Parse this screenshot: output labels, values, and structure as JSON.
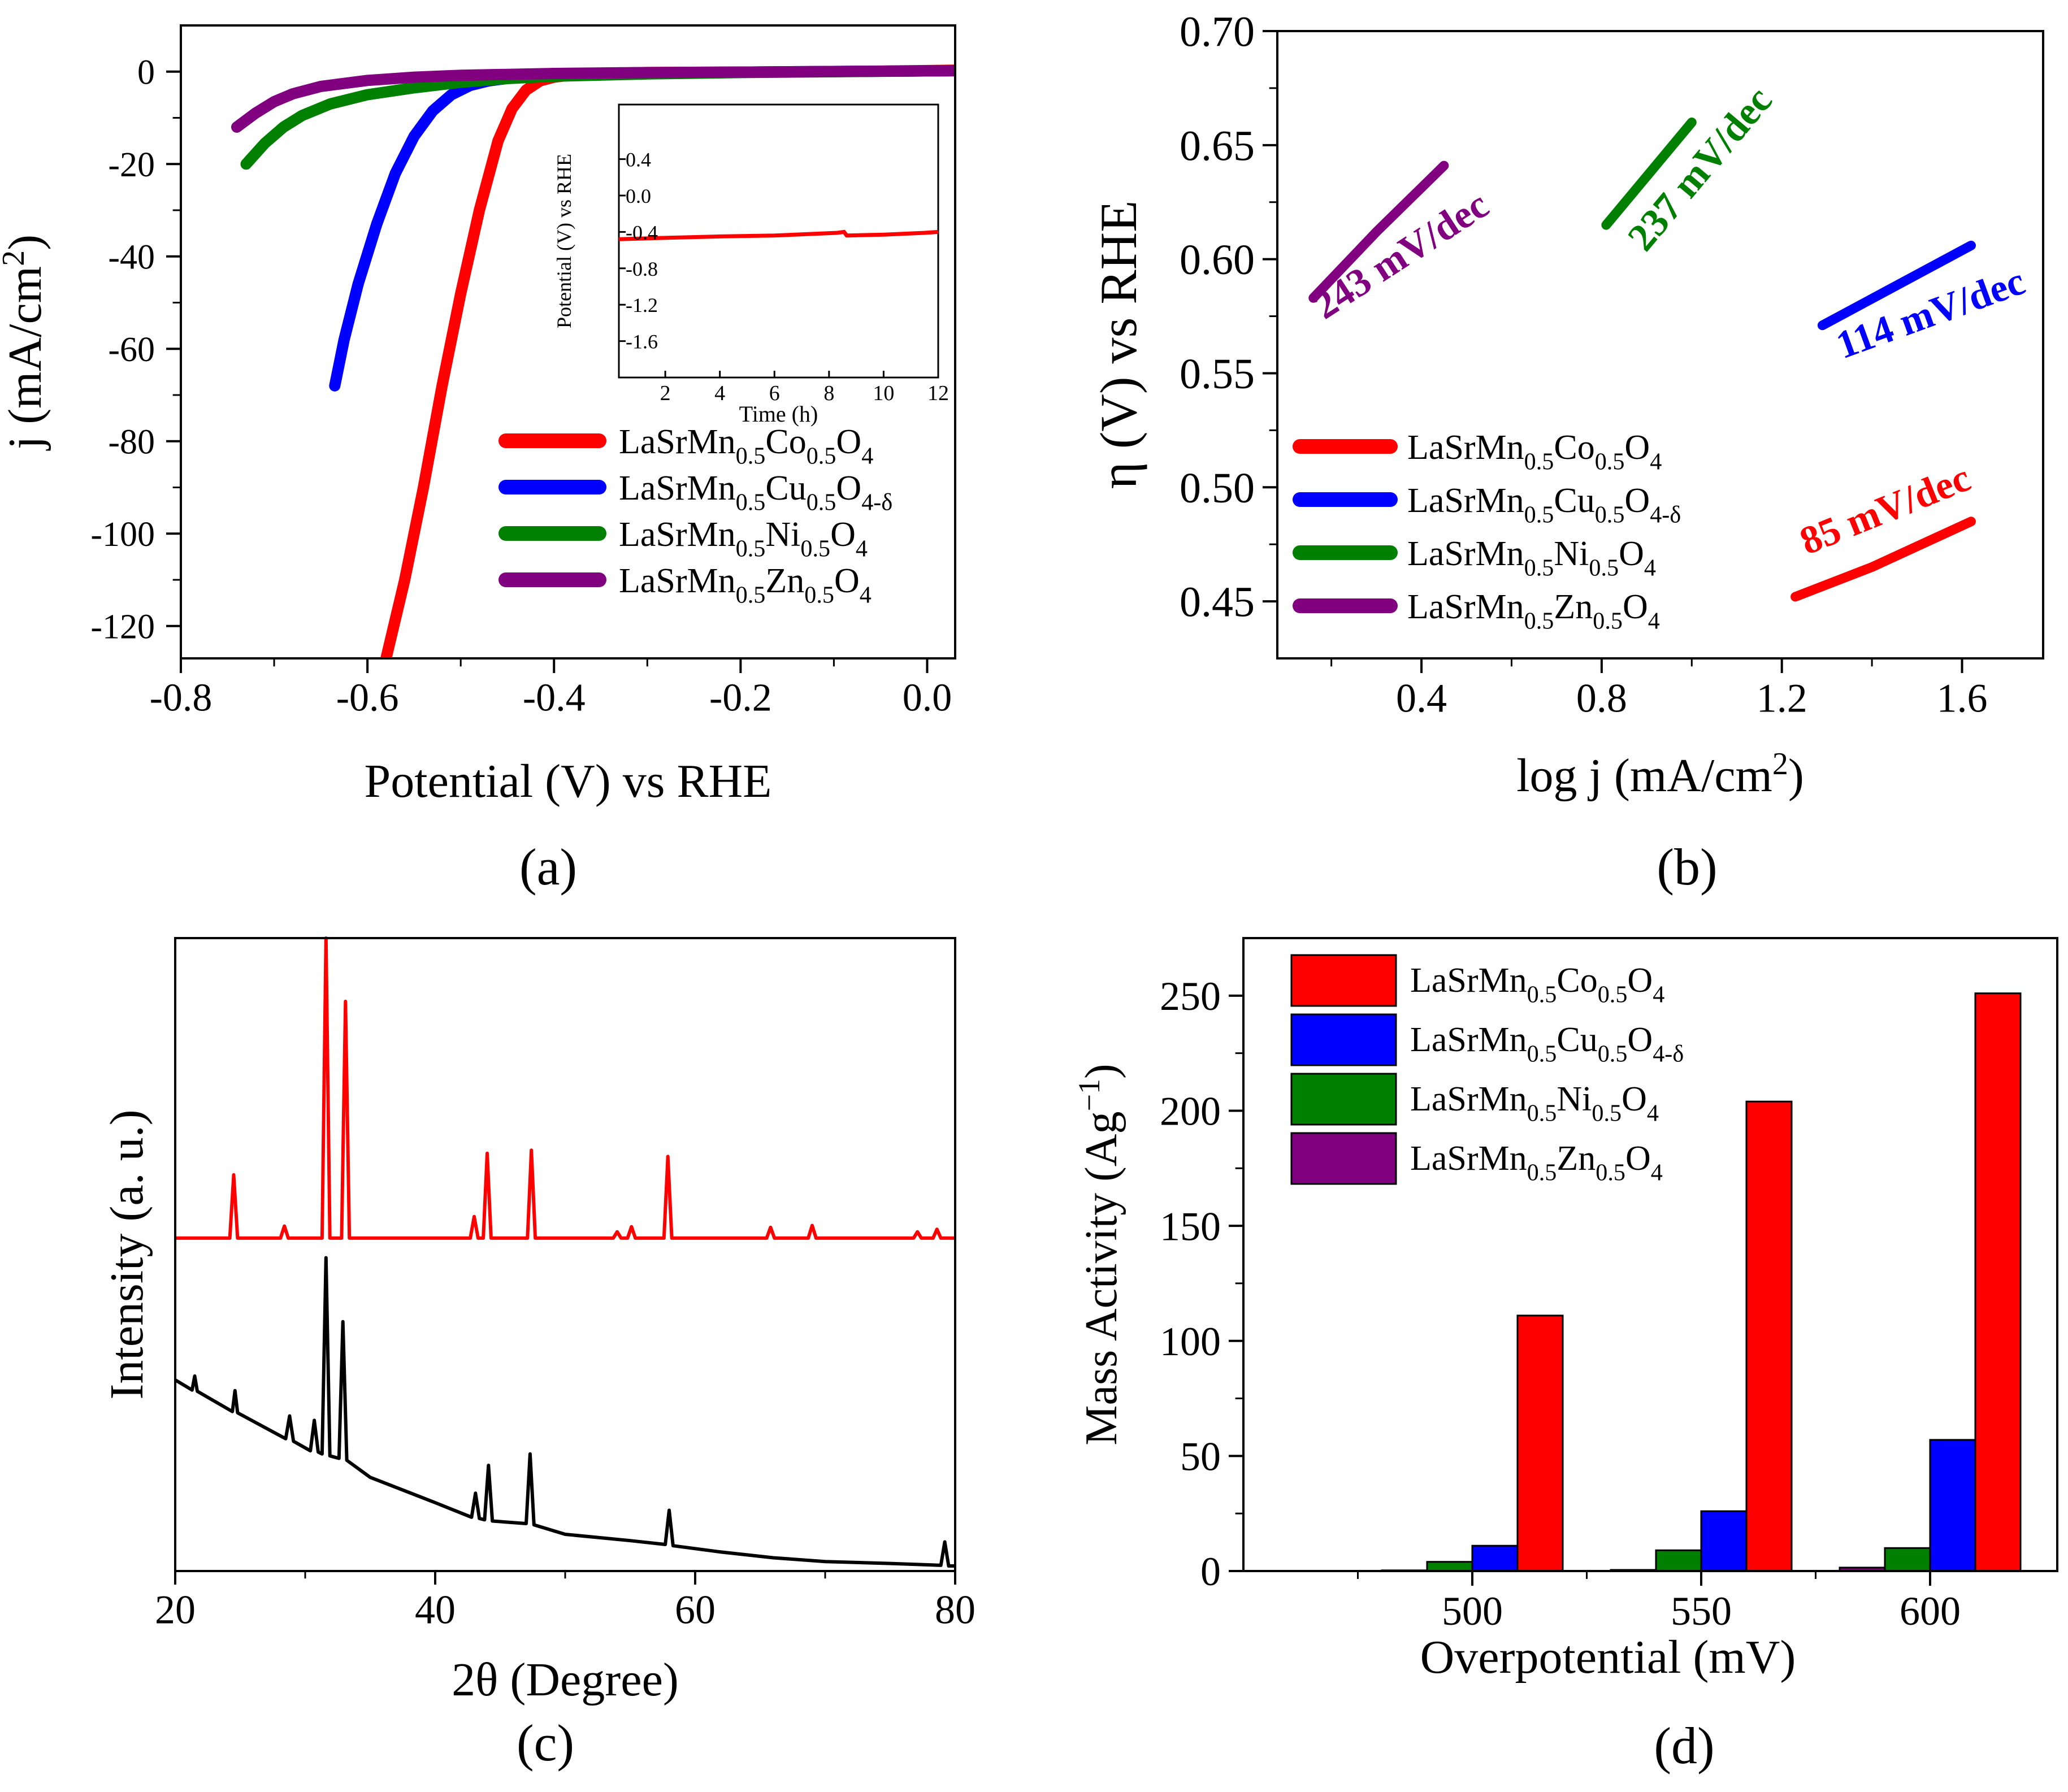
{
  "colors": {
    "co": "#ff0000",
    "cu": "#0000ff",
    "ni": "#008000",
    "zn": "#800080",
    "black": "#000000"
  },
  "chart_data": [
    {
      "id": "a",
      "type": "line",
      "panel_label": "(a)",
      "xlabel": "Potential (V) vs RHE",
      "ylabel": "j (mA/cm2)",
      "xlim": [
        -0.8,
        0.03
      ],
      "ylim": [
        -127,
        10
      ],
      "xticks": [
        -0.8,
        -0.6,
        -0.4,
        -0.2,
        0.0
      ],
      "xtick_labels": [
        "-0.8",
        "-0.6",
        "-0.4",
        "-0.2",
        "0.0"
      ],
      "yticks": [
        0,
        -20,
        -40,
        -60,
        -80,
        -100,
        -120
      ],
      "ytick_labels": [
        "0",
        "-20",
        "-40",
        "-60",
        "-80",
        "-100",
        "-120"
      ],
      "legend_position": "bottom-right",
      "series": [
        {
          "key": "co",
          "legend": {
            "base": "LaSrMn",
            "s1": "0.5",
            "mid": "Co",
            "s2": "0.5",
            "end": "O",
            "s3": "4"
          },
          "x": [
            -0.58,
            -0.56,
            -0.54,
            -0.52,
            -0.5,
            -0.48,
            -0.46,
            -0.445,
            -0.43,
            -0.415,
            -0.4,
            -0.38,
            -0.35,
            -0.3,
            -0.2,
            -0.1,
            0.03
          ],
          "y": [
            -127,
            -110,
            -90,
            -68,
            -48,
            -30,
            -15,
            -8,
            -4,
            -2,
            -1.2,
            -0.7,
            -0.4,
            -0.2,
            -0.1,
            0,
            0.3
          ]
        },
        {
          "key": "cu",
          "legend": {
            "base": "LaSrMn",
            "s1": "0.5",
            "mid": "Cu",
            "s2": "0.5",
            "end": "O",
            "s3": "4-δ"
          },
          "x": [
            -0.635,
            -0.625,
            -0.61,
            -0.59,
            -0.57,
            -0.55,
            -0.53,
            -0.51,
            -0.49,
            -0.47,
            -0.44,
            -0.4,
            -0.3,
            -0.2,
            0.03
          ],
          "y": [
            -68,
            -58,
            -46,
            -33,
            -22,
            -14,
            -8.5,
            -5,
            -3,
            -2,
            -1.2,
            -0.7,
            -0.3,
            -0.1,
            0.2
          ]
        },
        {
          "key": "ni",
          "legend": {
            "base": "LaSrMn",
            "s1": "0.5",
            "mid": "Ni",
            "s2": "0.5",
            "end": "O",
            "s3": "4"
          },
          "x": [
            -0.73,
            -0.71,
            -0.69,
            -0.67,
            -0.64,
            -0.6,
            -0.55,
            -0.5,
            -0.45,
            -0.4,
            -0.3,
            -0.2,
            0.03
          ],
          "y": [
            -20,
            -15.5,
            -12,
            -9.5,
            -7,
            -5,
            -3.5,
            -2.3,
            -1.5,
            -1,
            -0.5,
            -0.2,
            0.2
          ]
        },
        {
          "key": "zn",
          "legend": {
            "base": "LaSrMn",
            "s1": "0.5",
            "mid": "Zn",
            "s2": "0.5",
            "end": "O",
            "s3": "4"
          },
          "x": [
            -0.74,
            -0.72,
            -0.7,
            -0.68,
            -0.65,
            -0.6,
            -0.55,
            -0.5,
            -0.4,
            -0.3,
            -0.2,
            0.03
          ],
          "y": [
            -12,
            -9,
            -6.5,
            -4.8,
            -3.2,
            -1.9,
            -1.2,
            -0.8,
            -0.4,
            -0.2,
            -0.1,
            0.2
          ]
        }
      ],
      "inset": {
        "xlabel": "Time (h)",
        "ylabel": "Potential (V) vs RHE",
        "xlim": [
          0.3,
          12
        ],
        "ylim": [
          -2.0,
          1.0
        ],
        "xticks": [
          2,
          4,
          6,
          8,
          10,
          12
        ],
        "xtick_labels": [
          "2",
          "4",
          "6",
          "8",
          "10",
          "12"
        ],
        "yticks": [
          0.4,
          0.0,
          -0.4,
          -0.8,
          -1.2,
          -1.6
        ],
        "ytick_labels": [
          "0.4",
          "0.0",
          "-0.4",
          "-0.8",
          "-1.2",
          "-1.6"
        ],
        "series": {
          "key": "co",
          "x": [
            0.3,
            2,
            4,
            6,
            8.3,
            8.55,
            8.65,
            10,
            11.5,
            12
          ],
          "y": [
            -0.48,
            -0.465,
            -0.45,
            -0.44,
            -0.41,
            -0.4,
            -0.44,
            -0.43,
            -0.41,
            -0.4
          ]
        }
      }
    },
    {
      "id": "b",
      "type": "line",
      "panel_label": "(b)",
      "xlabel": "log j (mA/cm2)",
      "ylabel": "η (V) vs RHE",
      "xlim": [
        0.08,
        1.78
      ],
      "ylim": [
        0.425,
        0.7
      ],
      "xticks": [
        0.4,
        0.8,
        1.2,
        1.6
      ],
      "xtick_labels": [
        "0.4",
        "0.8",
        "1.2",
        "1.6"
      ],
      "yticks": [
        0.45,
        0.5,
        0.55,
        0.6,
        0.65,
        0.7
      ],
      "ytick_labels": [
        "0.45",
        "0.50",
        "0.55",
        "0.60",
        "0.65",
        "0.70"
      ],
      "legend_position": "bottom-left",
      "series": [
        {
          "key": "co",
          "legend": {
            "base": "LaSrMn",
            "s1": "0.5",
            "mid": "Co",
            "s2": "0.5",
            "end": "O",
            "s3": "4"
          },
          "x": [
            1.23,
            1.4,
            1.62
          ],
          "y": [
            0.452,
            0.465,
            0.485
          ]
        },
        {
          "key": "cu",
          "legend": {
            "base": "LaSrMn",
            "s1": "0.5",
            "mid": "Cu",
            "s2": "0.5",
            "end": "O",
            "s3": "4-δ"
          },
          "x": [
            1.29,
            1.62
          ],
          "y": [
            0.571,
            0.606
          ]
        },
        {
          "key": "ni",
          "legend": {
            "base": "LaSrMn",
            "s1": "0.5",
            "mid": "Ni",
            "s2": "0.5",
            "end": "O",
            "s3": "4"
          },
          "x": [
            0.81,
            1.0
          ],
          "y": [
            0.615,
            0.66
          ]
        },
        {
          "key": "zn",
          "legend": {
            "base": "LaSrMn",
            "s1": "0.5",
            "mid": "Zn",
            "s2": "0.5",
            "end": "O",
            "s3": "4"
          },
          "x": [
            0.16,
            0.3,
            0.45
          ],
          "y": [
            0.583,
            0.612,
            0.641
          ]
        }
      ],
      "annotations": [
        {
          "key": "zn",
          "text": "243 mV/dec",
          "x": 0.37,
          "y": 0.597,
          "angle": -33
        },
        {
          "key": "ni",
          "text": "237 mV/dec",
          "x": 1.04,
          "y": 0.636,
          "angle": -50
        },
        {
          "key": "cu",
          "text": "114 mV/dec",
          "x": 1.54,
          "y": 0.571,
          "angle": -20
        },
        {
          "key": "co",
          "text": "85 mV/dec",
          "x": 1.44,
          "y": 0.485,
          "angle": -22
        }
      ]
    },
    {
      "id": "c",
      "type": "line",
      "panel_label": "(c)",
      "xlabel": "2θ (Degree)",
      "ylabel": "Intensity (a. u.)",
      "xlim": [
        20,
        80
      ],
      "ylim": [
        0,
        1
      ],
      "xticks": [
        20,
        40,
        60,
        80
      ],
      "xtick_labels": [
        "20",
        "40",
        "60",
        "80"
      ],
      "series": [
        {
          "key": "co",
          "name": "top pattern",
          "x": [
            20,
            24.2,
            24.5,
            24.8,
            28.1,
            28.4,
            28.7,
            31.3,
            31.6,
            31.9,
            32.8,
            33.1,
            33.4,
            42.7,
            43.0,
            43.3,
            43.7,
            44.0,
            44.3,
            47.1,
            47.4,
            47.7,
            53.7,
            54.0,
            54.3,
            54.8,
            55.1,
            55.4,
            57.6,
            57.9,
            58.2,
            65.5,
            65.8,
            66.1,
            68.7,
            69.0,
            69.3,
            76.8,
            77.1,
            77.4,
            78.3,
            78.6,
            78.9,
            80
          ],
          "y": [
            0.526,
            0.526,
            0.626,
            0.526,
            0.526,
            0.545,
            0.526,
            0.526,
            1.0,
            0.526,
            0.526,
            0.9,
            0.526,
            0.526,
            0.56,
            0.526,
            0.526,
            0.66,
            0.526,
            0.526,
            0.665,
            0.526,
            0.526,
            0.536,
            0.526,
            0.526,
            0.544,
            0.526,
            0.526,
            0.655,
            0.526,
            0.526,
            0.543,
            0.526,
            0.526,
            0.546,
            0.526,
            0.526,
            0.536,
            0.526,
            0.526,
            0.54,
            0.526,
            0.526
          ]
        },
        {
          "key": "black",
          "name": "bottom pattern",
          "x": [
            20,
            21.3,
            21.5,
            21.7,
            24.4,
            24.6,
            24.8,
            28.5,
            28.8,
            29.1,
            30.4,
            30.7,
            31.0,
            31.3,
            31.6,
            31.9,
            32.6,
            32.9,
            33.2,
            35,
            40,
            42.8,
            43.1,
            43.4,
            43.8,
            44.1,
            44.4,
            47.0,
            47.3,
            47.6,
            50,
            55,
            57.7,
            58.0,
            58.3,
            62,
            66,
            70,
            75,
            78.9,
            79.2,
            79.5,
            80
          ],
          "y": [
            0.302,
            0.286,
            0.308,
            0.284,
            0.252,
            0.285,
            0.25,
            0.209,
            0.245,
            0.205,
            0.19,
            0.238,
            0.188,
            0.185,
            0.495,
            0.182,
            0.178,
            0.394,
            0.175,
            0.148,
            0.108,
            0.085,
            0.123,
            0.083,
            0.081,
            0.167,
            0.079,
            0.075,
            0.185,
            0.073,
            0.058,
            0.048,
            0.042,
            0.096,
            0.04,
            0.03,
            0.021,
            0.015,
            0.012,
            0.009,
            0.046,
            0.008,
            0.008
          ]
        }
      ]
    },
    {
      "id": "d",
      "type": "bar",
      "panel_label": "(d)",
      "xlabel": "Overpotential (mV)",
      "ylabel": "Mass Activity (Ag-1)",
      "ylim": [
        0,
        275
      ],
      "yticks": [
        0,
        50,
        100,
        150,
        200,
        250
      ],
      "ytick_labels": [
        "0",
        "50",
        "100",
        "150",
        "200",
        "250"
      ],
      "categories": [
        "500",
        "550",
        "600"
      ],
      "legend_position": "top-left",
      "series": [
        {
          "key": "zn",
          "legend": {
            "base": "LaSrMn",
            "s1": "0.5",
            "mid": "Zn",
            "s2": "0.5",
            "end": "O",
            "s3": "4"
          },
          "values": [
            0.3,
            0.5,
            1.5
          ]
        },
        {
          "key": "ni",
          "legend": {
            "base": "LaSrMn",
            "s1": "0.5",
            "mid": "Ni",
            "s2": "0.5",
            "end": "O",
            "s3": "4"
          },
          "values": [
            4,
            9,
            10
          ]
        },
        {
          "key": "cu",
          "legend": {
            "base": "LaSrMn",
            "s1": "0.5",
            "mid": "Cu",
            "s2": "0.5",
            "end": "O",
            "s3": "4-δ"
          },
          "values": [
            11,
            26,
            57
          ]
        },
        {
          "key": "co",
          "legend": {
            "base": "LaSrMn",
            "s1": "0.5",
            "mid": "Co",
            "s2": "0.5",
            "end": "O",
            "s3": "4"
          },
          "values": [
            111,
            204,
            251
          ]
        }
      ],
      "legend_order": [
        "co",
        "cu",
        "ni",
        "zn"
      ]
    }
  ]
}
